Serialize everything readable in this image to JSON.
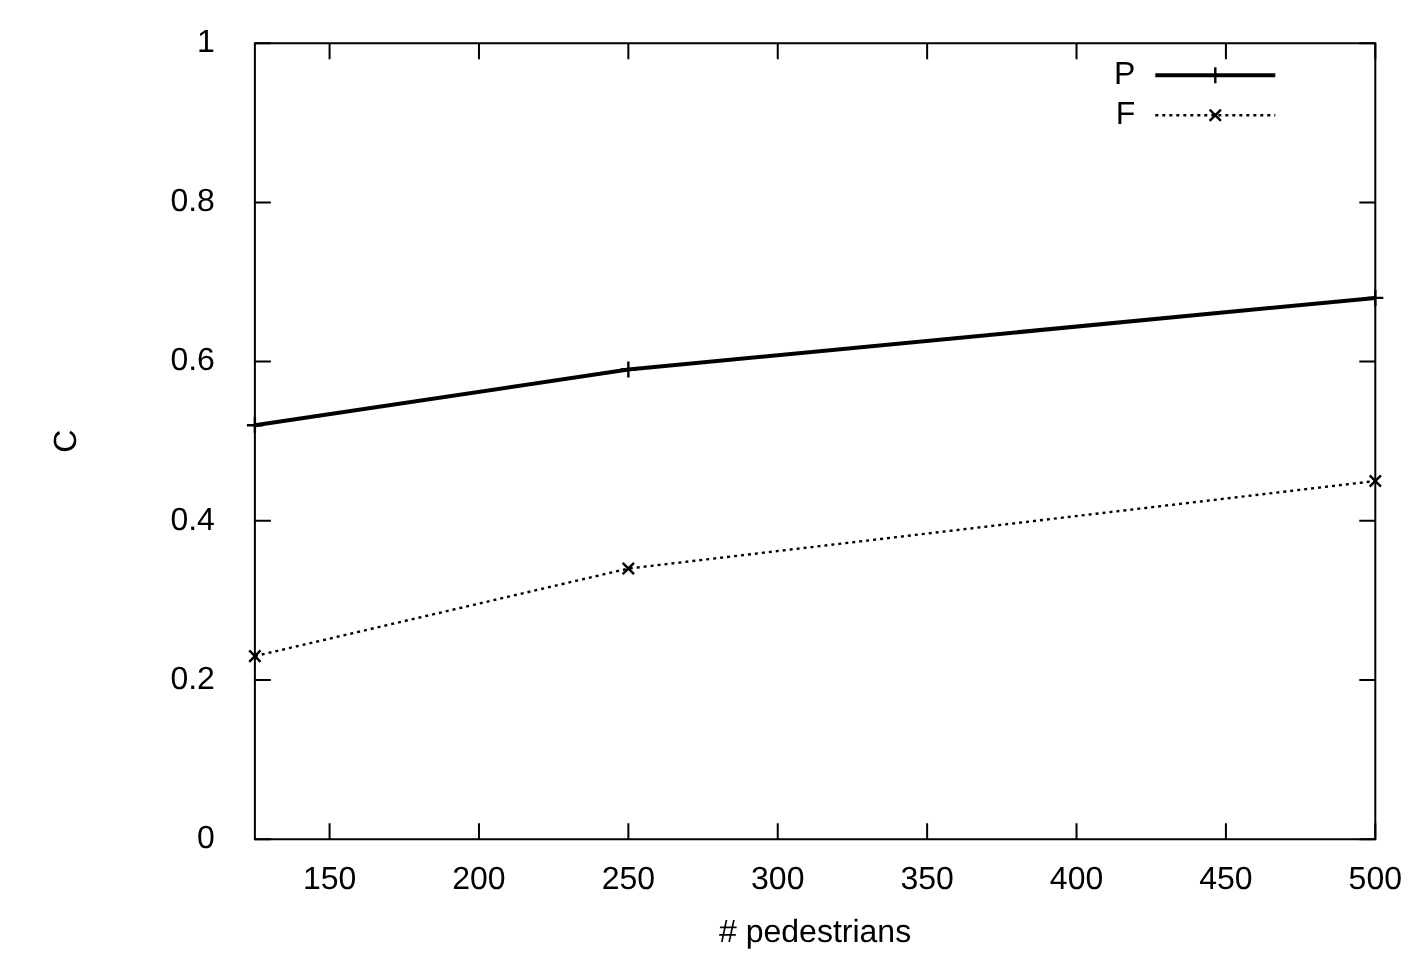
{
  "chart_data": {
    "type": "line",
    "xlabel": "# pedestrians",
    "ylabel": "C",
    "xlim": [
      125,
      500
    ],
    "xticks": [
      150,
      200,
      250,
      300,
      350,
      400,
      450,
      500
    ],
    "ylim": [
      0,
      1
    ],
    "yticks": [
      0,
      0.2,
      0.4,
      0.6,
      0.8,
      1
    ],
    "grid": false,
    "legend": "top right",
    "series": [
      {
        "name": "P",
        "color": "#000000",
        "x": [
          125,
          250,
          500
        ],
        "values": [
          0.52,
          0.59,
          0.68
        ],
        "marker": "cross",
        "line_style": "solid"
      },
      {
        "name": "F",
        "color": "#000000",
        "x": [
          125,
          250,
          500
        ],
        "values": [
          0.23,
          0.34,
          0.45
        ],
        "marker": "x",
        "line_style": "dotted"
      }
    ]
  }
}
